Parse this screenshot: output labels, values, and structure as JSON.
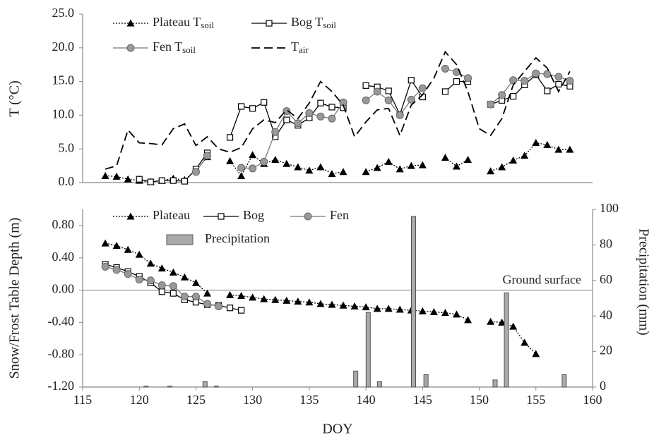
{
  "chart_data": [
    {
      "type": "line",
      "ylabel": "T (°C)",
      "xlim": [
        115,
        160
      ],
      "ylim": [
        0,
        25
      ],
      "yticks": [
        {
          "value": 0,
          "label": "0.0"
        },
        {
          "value": 5,
          "label": "5.0"
        },
        {
          "value": 10,
          "label": "10.0"
        },
        {
          "value": 15,
          "label": "15.0"
        },
        {
          "value": 20,
          "label": "20.0"
        },
        {
          "value": 25,
          "label": "25.0"
        }
      ],
      "x": [
        117,
        118,
        119,
        120,
        121,
        122,
        123,
        124,
        125,
        126,
        127,
        128,
        129,
        130,
        131,
        132,
        133,
        134,
        135,
        136,
        137,
        138,
        139,
        140,
        141,
        142,
        143,
        144,
        145,
        146,
        147,
        148,
        149,
        150,
        151,
        152,
        153,
        154,
        155,
        156,
        157,
        158
      ],
      "series": [
        {
          "name": "Plateau T",
          "subscript": "soil",
          "color": "#000000",
          "line_style": "dotted",
          "marker": "triangle",
          "values": [
            1.0,
            0.9,
            0.5,
            0.3,
            0.1,
            0.3,
            0.6,
            0.4,
            1.8,
            3.8,
            null,
            3.2,
            1.0,
            4.1,
            2.8,
            3.4,
            2.8,
            2.3,
            1.8,
            2.3,
            1.3,
            1.6,
            null,
            1.6,
            2.2,
            3.1,
            2.0,
            2.5,
            2.6,
            null,
            3.7,
            2.4,
            3.4,
            null,
            1.7,
            2.3,
            3.3,
            4.0,
            5.9,
            5.6,
            4.9,
            4.9
          ]
        },
        {
          "name": "Bog T",
          "subscript": "soil",
          "color": "#000000",
          "line_style": "solid",
          "marker": "square",
          "values": [
            null,
            null,
            null,
            0.5,
            0.1,
            0.3,
            0.3,
            0.2,
            2.0,
            4.4,
            null,
            6.7,
            11.3,
            11.0,
            11.9,
            6.8,
            9.3,
            8.5,
            9.6,
            11.8,
            11.2,
            11.1,
            null,
            14.4,
            14.2,
            13.6,
            10.1,
            15.2,
            12.7,
            null,
            13.5,
            15.0,
            15.0,
            null,
            11.6,
            12.2,
            12.8,
            14.5,
            16.0,
            13.6,
            14.6,
            14.3
          ]
        },
        {
          "name": "Fen T",
          "subscript": "soil",
          "color": "#777777",
          "line_style": "solid",
          "marker": "circle",
          "values": [
            null,
            null,
            null,
            null,
            null,
            null,
            null,
            null,
            1.6,
            4.0,
            null,
            null,
            2.2,
            2.1,
            3.1,
            7.5,
            10.6,
            8.8,
            10.3,
            9.8,
            9.5,
            11.9,
            null,
            12.2,
            13.5,
            12.2,
            10.0,
            12.3,
            14.0,
            null,
            16.9,
            16.4,
            15.5,
            null,
            11.6,
            13.0,
            15.2,
            15.1,
            16.2,
            16.1,
            15.7,
            15.1
          ]
        },
        {
          "name": "T",
          "subscript": "air",
          "color": "#000000",
          "line_style": "dashed",
          "marker": "none",
          "values": [
            2.0,
            2.5,
            7.8,
            5.9,
            5.8,
            5.6,
            8.0,
            8.7,
            5.5,
            6.8,
            5.0,
            4.5,
            5.2,
            8.0,
            9.3,
            8.9,
            10.8,
            9.5,
            11.8,
            15.0,
            13.5,
            11.5,
            6.8,
            9.0,
            10.8,
            11.0,
            7.0,
            11.5,
            13.0,
            15.5,
            19.4,
            17.5,
            13.5,
            8.0,
            7.0,
            9.5,
            14.5,
            16.5,
            18.5,
            17.0,
            13.5,
            16.5
          ]
        }
      ]
    },
    {
      "type": "line",
      "xlabel": "DOY",
      "ylabel": "Snow/Frost Table Depth (m)",
      "y2label": "Precipitation (mm)",
      "annotation": "Ground surface",
      "reference_line": 0,
      "xlim": [
        115,
        160
      ],
      "xticks": [
        115,
        120,
        125,
        130,
        135,
        140,
        145,
        150,
        155,
        160
      ],
      "ylim": [
        -1.2,
        1.0
      ],
      "yticks": [
        {
          "value": -1.2,
          "label": "-1.20"
        },
        {
          "value": -0.8,
          "label": "-0.80"
        },
        {
          "value": -0.4,
          "label": "-0.40"
        },
        {
          "value": 0,
          "label": "0.00"
        },
        {
          "value": 0.4,
          "label": "0.40"
        },
        {
          "value": 0.8,
          "label": "0.80"
        }
      ],
      "y2lim": [
        0,
        100
      ],
      "y2ticks": [
        0,
        20,
        40,
        60,
        80,
        100
      ],
      "x": [
        117,
        118,
        119,
        120,
        121,
        122,
        123,
        124,
        125,
        126,
        127,
        128,
        129,
        130,
        131,
        132,
        133,
        134,
        135,
        136,
        137,
        138,
        139,
        140,
        141,
        142,
        143,
        144,
        145,
        146,
        147,
        148,
        149,
        150,
        151,
        152,
        153,
        154,
        155
      ],
      "series": [
        {
          "name": "Plateau",
          "color": "#000000",
          "line_style": "dotted",
          "marker": "triangle",
          "values": [
            0.58,
            0.55,
            0.5,
            0.44,
            0.33,
            0.27,
            0.22,
            0.16,
            0.09,
            -0.04,
            null,
            -0.06,
            -0.07,
            -0.09,
            -0.11,
            -0.12,
            -0.13,
            -0.14,
            -0.15,
            -0.17,
            -0.18,
            -0.19,
            -0.2,
            -0.21,
            -0.23,
            -0.23,
            -0.24,
            -0.25,
            -0.26,
            -0.27,
            -0.28,
            -0.3,
            -0.37,
            null,
            -0.39,
            -0.4,
            -0.45,
            -0.65,
            -0.79
          ]
        },
        {
          "name": "Bog",
          "color": "#000000",
          "line_style": "solid",
          "marker": "square",
          "values": [
            0.32,
            0.28,
            0.23,
            0.17,
            0.09,
            -0.02,
            -0.04,
            -0.12,
            -0.15,
            -0.18,
            -0.19,
            -0.22,
            -0.25,
            null,
            null,
            null,
            null,
            null,
            null,
            null,
            null,
            null,
            null,
            null,
            null,
            null,
            null,
            null,
            null,
            null,
            null,
            null,
            null,
            null,
            null,
            null,
            null,
            null,
            null
          ]
        },
        {
          "name": "Fen",
          "color": "#777777",
          "line_style": "solid",
          "marker": "circle",
          "values": [
            0.29,
            0.25,
            0.2,
            0.13,
            0.12,
            0.06,
            0.05,
            -0.08,
            -0.08,
            -0.17,
            -0.2,
            null,
            null,
            null,
            null,
            null,
            null,
            null,
            null,
            null,
            null,
            null,
            null,
            null,
            null,
            null,
            null,
            null,
            null,
            null,
            null,
            null,
            null,
            null,
            null,
            null,
            null,
            null,
            null
          ]
        },
        {
          "name": "Precipitation",
          "type": "bar",
          "axis": "y2",
          "color": "#aaaaaa",
          "x": [
            120.6,
            122.7,
            125.8,
            126.8,
            139.1,
            140.2,
            141.2,
            144.2,
            145.3,
            151.4,
            152.4,
            157.5
          ],
          "values": [
            0.5,
            0.5,
            3,
            0.5,
            9,
            42,
            3,
            96,
            7,
            4,
            53,
            7
          ]
        }
      ]
    }
  ]
}
